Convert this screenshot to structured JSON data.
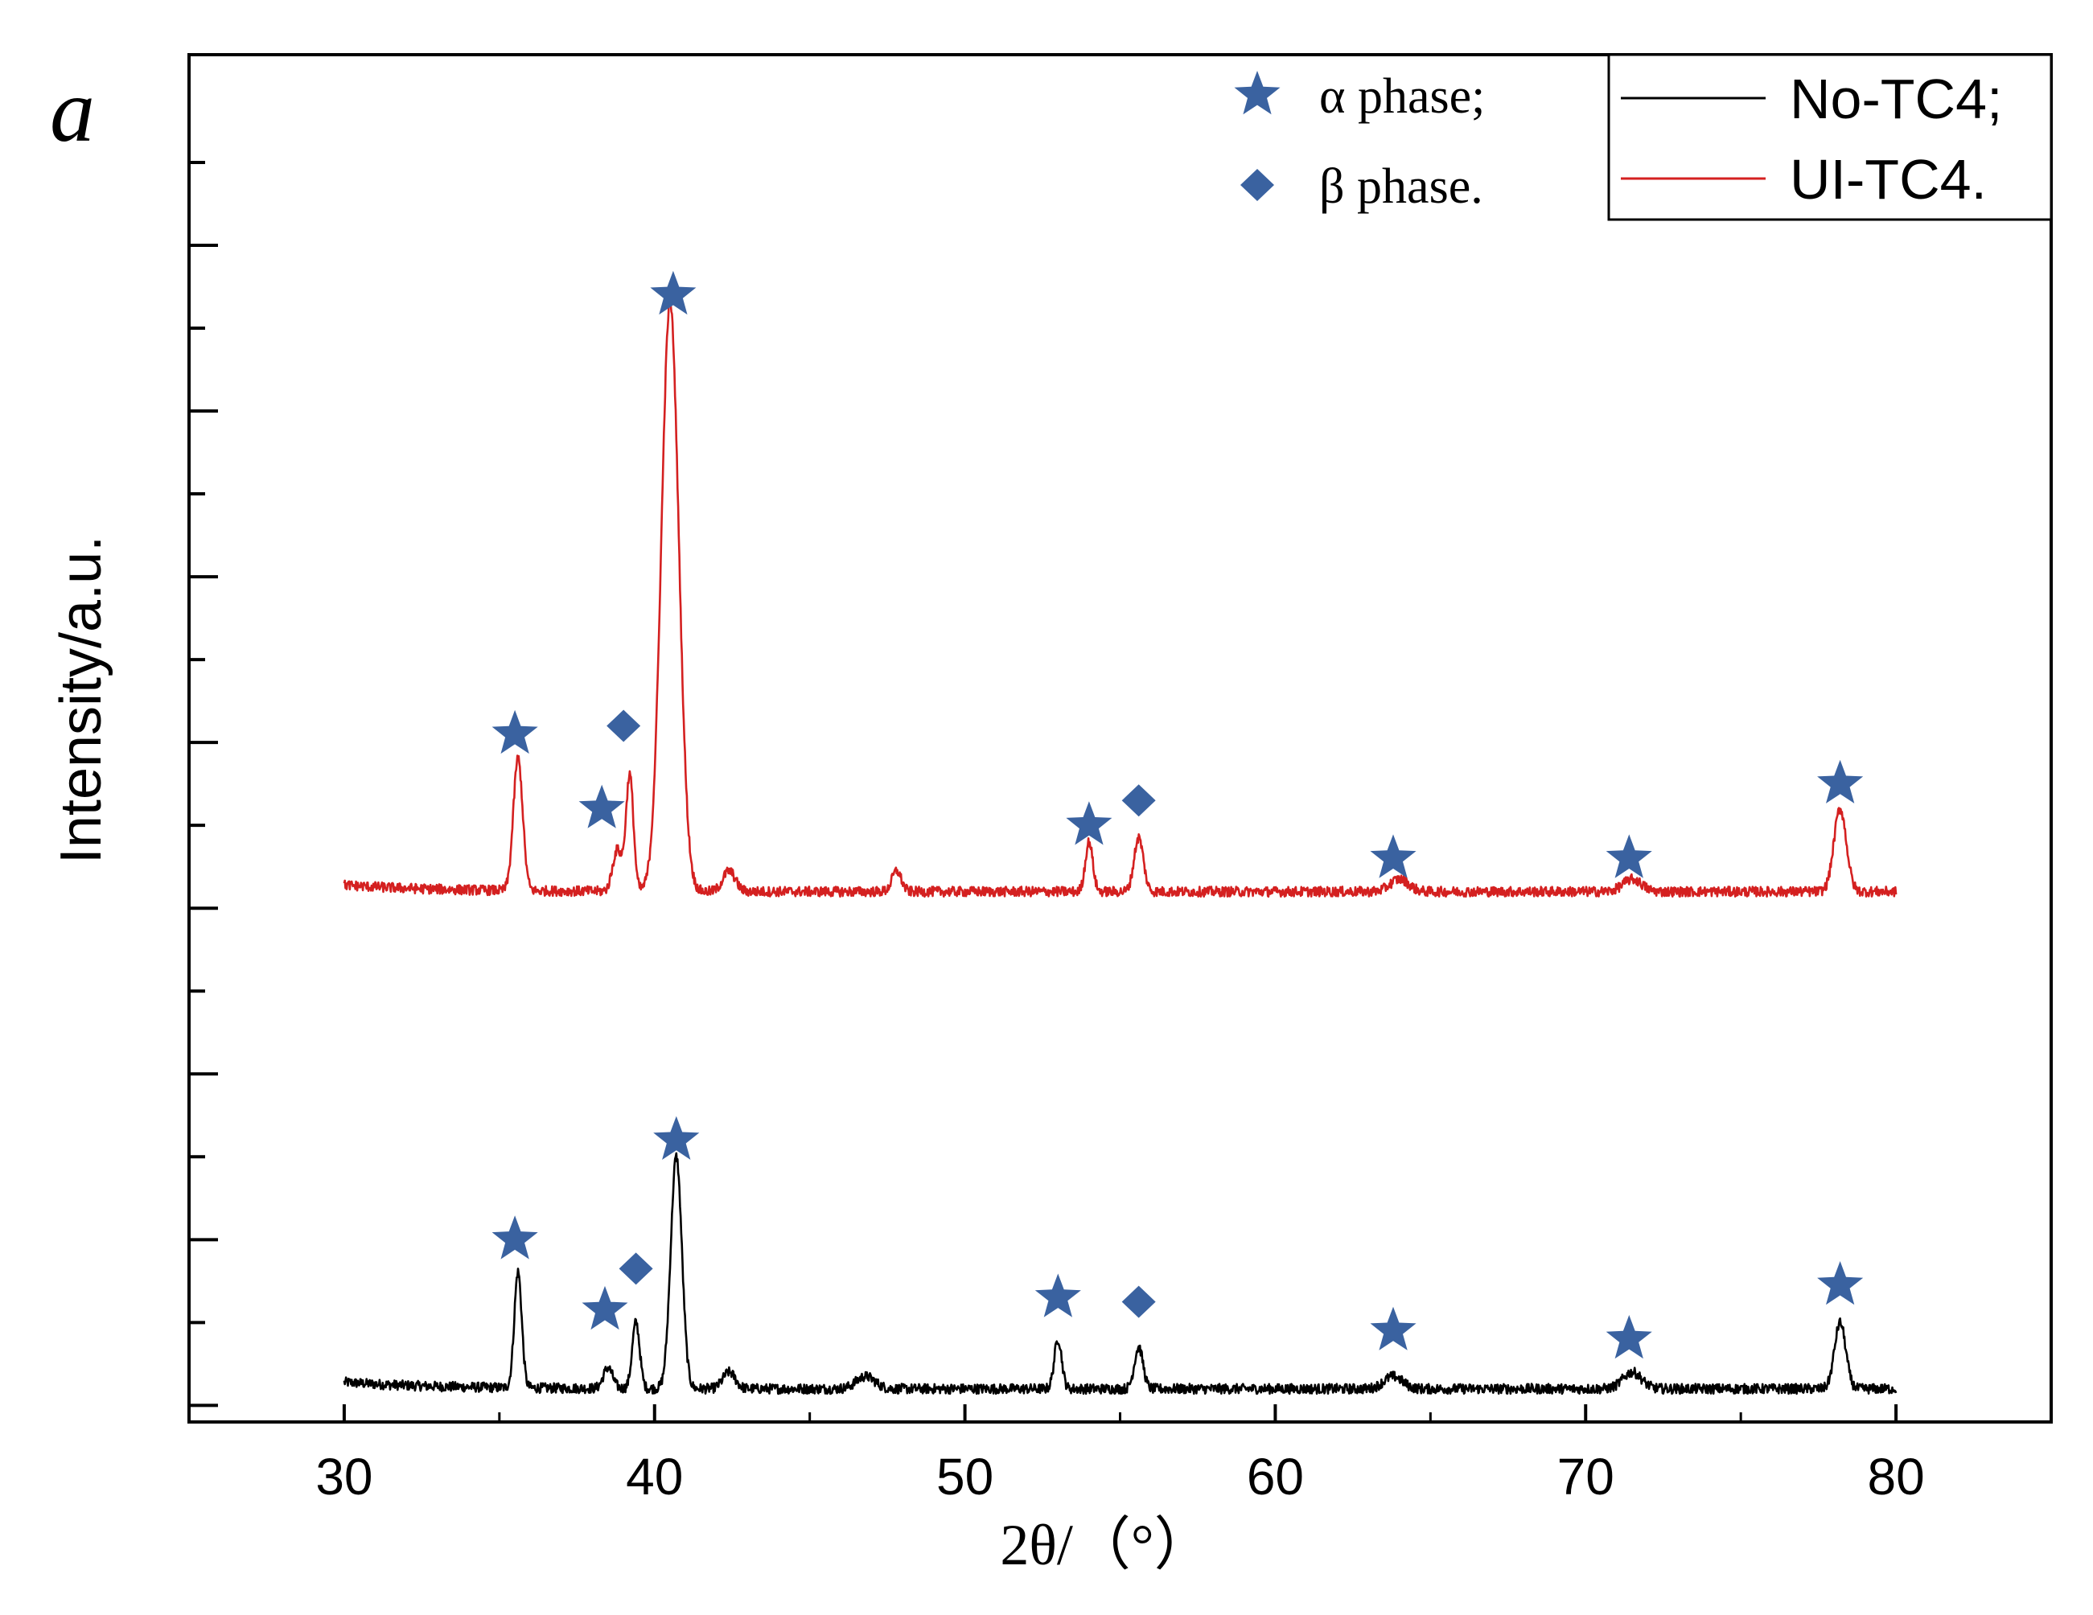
{
  "panel_label": "a",
  "chart_data": {
    "type": "line",
    "title": "",
    "xlabel": "2θ/（°）",
    "ylabel": "Intensity/a.u.",
    "xlim": [
      25,
      85
    ],
    "ylim": [
      -0.2,
      16.3
    ],
    "xticks": [
      30,
      40,
      50,
      60,
      70,
      80
    ],
    "xtick_labels": [
      "30",
      "40",
      "50",
      "60",
      "70",
      "80"
    ],
    "y_major_ticks": [
      0,
      2,
      4,
      6,
      8,
      10,
      12,
      14
    ],
    "y_minor_ticks": [
      1,
      3,
      5,
      7,
      9,
      11,
      13,
      15
    ],
    "series": [
      {
        "name": "No-TC4;",
        "color": "#000000",
        "baseline": 0.2,
        "noise": 0.06,
        "x_range": [
          30,
          80
        ],
        "peaks": [
          {
            "x": 35.6,
            "height": 1.4,
            "width": 0.12
          },
          {
            "x": 38.5,
            "height": 0.25,
            "width": 0.15
          },
          {
            "x": 39.4,
            "height": 0.8,
            "width": 0.12
          },
          {
            "x": 40.7,
            "height": 2.8,
            "width": 0.18
          },
          {
            "x": 42.4,
            "height": 0.2,
            "width": 0.2
          },
          {
            "x": 46.8,
            "height": 0.15,
            "width": 0.3
          },
          {
            "x": 53.0,
            "height": 0.6,
            "width": 0.12
          },
          {
            "x": 55.6,
            "height": 0.5,
            "width": 0.14
          },
          {
            "x": 63.8,
            "height": 0.15,
            "width": 0.3
          },
          {
            "x": 71.5,
            "height": 0.2,
            "width": 0.3
          },
          {
            "x": 78.2,
            "height": 0.8,
            "width": 0.18
          }
        ]
      },
      {
        "name": "UI-TC4.",
        "color": "#d42020",
        "baseline": 6.2,
        "noise": 0.06,
        "x_range": [
          30,
          80
        ],
        "peaks": [
          {
            "x": 35.6,
            "height": 1.6,
            "width": 0.15
          },
          {
            "x": 38.8,
            "height": 0.5,
            "width": 0.15
          },
          {
            "x": 39.2,
            "height": 1.4,
            "width": 0.12
          },
          {
            "x": 40.5,
            "height": 7.1,
            "width": 0.28
          },
          {
            "x": 42.4,
            "height": 0.25,
            "width": 0.2
          },
          {
            "x": 47.8,
            "height": 0.25,
            "width": 0.15
          },
          {
            "x": 54.0,
            "height": 0.6,
            "width": 0.12
          },
          {
            "x": 55.6,
            "height": 0.65,
            "width": 0.15
          },
          {
            "x": 64.0,
            "height": 0.15,
            "width": 0.3
          },
          {
            "x": 71.5,
            "height": 0.15,
            "width": 0.3
          },
          {
            "x": 78.2,
            "height": 1.0,
            "width": 0.2
          }
        ]
      }
    ],
    "phase_markers": [
      {
        "phase": "alpha",
        "shape": "star",
        "x": 35.5,
        "y": 8.1
      },
      {
        "phase": "alpha",
        "shape": "star",
        "x": 38.3,
        "y": 7.2
      },
      {
        "phase": "beta",
        "shape": "diamond",
        "x": 39.0,
        "y": 8.2
      },
      {
        "phase": "alpha",
        "shape": "star",
        "x": 40.6,
        "y": 13.4
      },
      {
        "phase": "alpha",
        "shape": "star",
        "x": 54.0,
        "y": 7.0
      },
      {
        "phase": "beta",
        "shape": "diamond",
        "x": 55.6,
        "y": 7.3
      },
      {
        "phase": "alpha",
        "shape": "star",
        "x": 63.8,
        "y": 6.6
      },
      {
        "phase": "alpha",
        "shape": "star",
        "x": 71.4,
        "y": 6.6
      },
      {
        "phase": "alpha",
        "shape": "star",
        "x": 78.2,
        "y": 7.5
      },
      {
        "phase": "alpha",
        "shape": "star",
        "x": 35.5,
        "y": 2.0
      },
      {
        "phase": "alpha",
        "shape": "star",
        "x": 38.4,
        "y": 1.15
      },
      {
        "phase": "beta",
        "shape": "diamond",
        "x": 39.4,
        "y": 1.65
      },
      {
        "phase": "alpha",
        "shape": "star",
        "x": 40.7,
        "y": 3.2
      },
      {
        "phase": "alpha",
        "shape": "star",
        "x": 53.0,
        "y": 1.3
      },
      {
        "phase": "beta",
        "shape": "diamond",
        "x": 55.6,
        "y": 1.25
      },
      {
        "phase": "alpha",
        "shape": "star",
        "x": 63.8,
        "y": 0.9
      },
      {
        "phase": "alpha",
        "shape": "star",
        "x": 71.4,
        "y": 0.8
      },
      {
        "phase": "alpha",
        "shape": "star",
        "x": 78.2,
        "y": 1.45
      }
    ],
    "phase_legend": [
      {
        "shape": "star",
        "label": "α phase;"
      },
      {
        "shape": "diamond",
        "label": "β phase."
      }
    ],
    "marker_color": "#3a62a0",
    "legend_position": "top-right"
  }
}
